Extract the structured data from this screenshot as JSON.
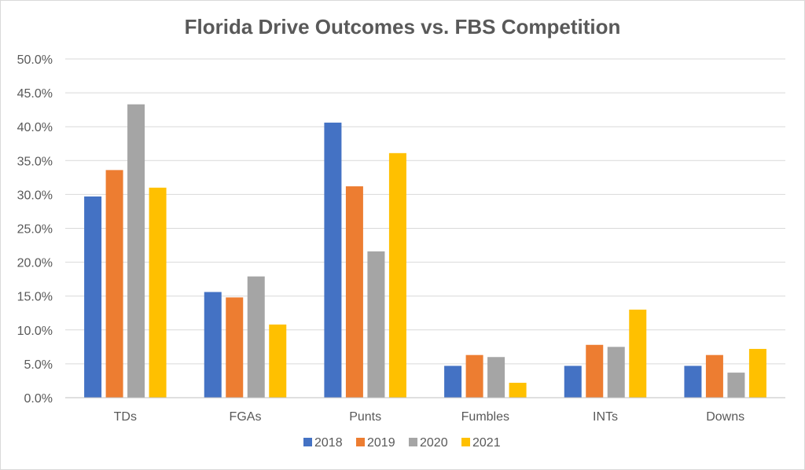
{
  "chart_data": {
    "type": "bar",
    "title": "Florida Drive Outcomes vs. FBS Competition",
    "categories": [
      "TDs",
      "FGAs",
      "Punts",
      "Fumbles",
      "INTs",
      "Downs"
    ],
    "series": [
      {
        "name": "2018",
        "color": "#4472C4",
        "values": [
          29.7,
          15.6,
          40.6,
          4.7,
          4.7,
          4.7
        ]
      },
      {
        "name": "2019",
        "color": "#ED7D31",
        "values": [
          33.6,
          14.8,
          31.2,
          6.3,
          7.8,
          6.3
        ]
      },
      {
        "name": "2020",
        "color": "#A5A5A5",
        "values": [
          43.3,
          17.9,
          21.6,
          6.0,
          7.5,
          3.7
        ]
      },
      {
        "name": "2021",
        "color": "#FFC000",
        "values": [
          31.0,
          10.8,
          36.1,
          2.2,
          13.0,
          7.2
        ]
      }
    ],
    "ylim": [
      0,
      50
    ],
    "yticks": [
      "0.0%",
      "5.0%",
      "10.0%",
      "15.0%",
      "20.0%",
      "25.0%",
      "30.0%",
      "35.0%",
      "40.0%",
      "45.0%",
      "50.0%"
    ],
    "xlabel": "",
    "ylabel": "",
    "grid": true,
    "legend": "bottom"
  }
}
